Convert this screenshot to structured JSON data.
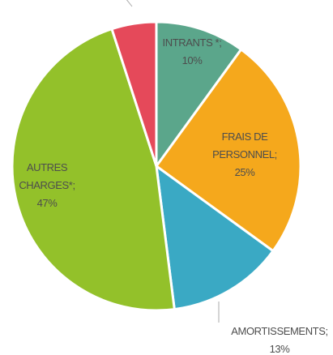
{
  "chart_data": {
    "type": "pie",
    "categories": [
      "INTRANTS *;",
      "FRAIS DE PERSONNEL;",
      "AMORTISSEMENTS;",
      "AUTRES CHARGES*;",
      null
    ],
    "values": [
      10,
      25,
      13,
      47,
      5
    ],
    "value_labels": [
      "10%",
      "25%",
      "13%",
      "47%",
      null
    ],
    "colors": [
      "#5ba68b",
      "#f5a81c",
      "#3aa9c4",
      "#93c12a",
      "#e5495a"
    ]
  }
}
